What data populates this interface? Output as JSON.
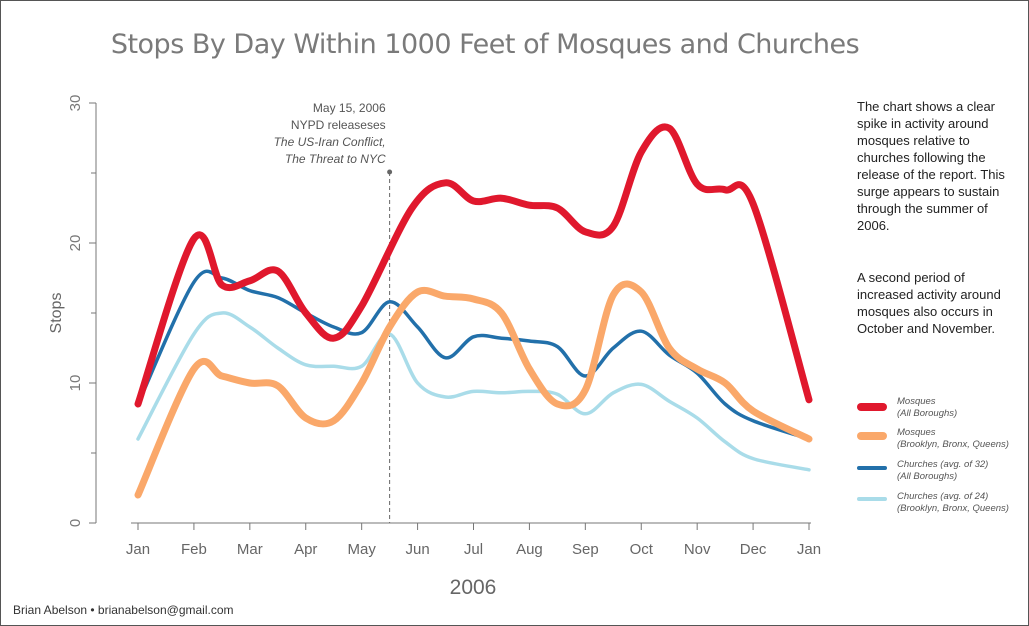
{
  "page": {
    "credit": "Brian Abelson • brianabelson@gmail.com",
    "description": [
      "The chart shows a clear spike in activity around mosques relative to churches following the release of the report. This surge appears to sustain through the summer of 2006.",
      "A second period of increased activity around mosques also occurs in October and November."
    ]
  },
  "chart_data": {
    "type": "line",
    "title": "Stops By Day Within 1000 Feet of Mosques and Churches",
    "xlabel": "2006",
    "ylabel": "Stops",
    "ylim": [
      0,
      30
    ],
    "yticks": [
      0,
      10,
      20,
      30
    ],
    "grid": false,
    "legend_position": "right",
    "x_tick_labels": [
      "Jan",
      "Feb",
      "Mar",
      "Apr",
      "May",
      "Jun",
      "Jul",
      "Aug",
      "Sep",
      "Oct",
      "Nov",
      "Dec",
      "Jan"
    ],
    "annotation": {
      "x": 4.5,
      "line1": "May 15, 2006",
      "line2": "NYPD releaseses",
      "line3": "The US-Iran Conflict,",
      "line4": "The Threat to NYC"
    },
    "series": [
      {
        "name": "Mosques",
        "subtitle": "(All Boroughs)",
        "color": "#e0182d",
        "width": 7,
        "points": [
          [
            0,
            8.5
          ],
          [
            1,
            20.3
          ],
          [
            1.5,
            17
          ],
          [
            2,
            17.3
          ],
          [
            2.5,
            18
          ],
          [
            3,
            15
          ],
          [
            3.5,
            13.2
          ],
          [
            4,
            15.5
          ],
          [
            4.9,
            22.5
          ],
          [
            5.5,
            24.3
          ],
          [
            6,
            23
          ],
          [
            6.5,
            23.2
          ],
          [
            7,
            22.7
          ],
          [
            7.5,
            22.5
          ],
          [
            8,
            20.8
          ],
          [
            8.5,
            21.2
          ],
          [
            9,
            26.5
          ],
          [
            9.5,
            28.2
          ],
          [
            10,
            24.2
          ],
          [
            10.5,
            23.8
          ],
          [
            11,
            22.8
          ],
          [
            12,
            8.8
          ]
        ]
      },
      {
        "name": "Mosques",
        "subtitle": "(Brooklyn, Bronx, Queens)",
        "color": "#faa86a",
        "width": 7,
        "points": [
          [
            0,
            2
          ],
          [
            1,
            11
          ],
          [
            1.5,
            10.5
          ],
          [
            2,
            10
          ],
          [
            2.5,
            9.8
          ],
          [
            3,
            7.5
          ],
          [
            3.5,
            7.3
          ],
          [
            4,
            10
          ],
          [
            4.5,
            14
          ],
          [
            5,
            16.5
          ],
          [
            5.5,
            16.2
          ],
          [
            6,
            16
          ],
          [
            6.5,
            15
          ],
          [
            7,
            11
          ],
          [
            7.5,
            8.5
          ],
          [
            8,
            9.5
          ],
          [
            8.5,
            16.3
          ],
          [
            9,
            16.5
          ],
          [
            9.5,
            12.5
          ],
          [
            10,
            11
          ],
          [
            10.5,
            10
          ],
          [
            11,
            8
          ],
          [
            12,
            6
          ]
        ]
      },
      {
        "name": "Churches (avg. of 32)",
        "subtitle": "(All Boroughs)",
        "color": "#2270aa",
        "width": 3.5,
        "points": [
          [
            0,
            8.5
          ],
          [
            1,
            17.2
          ],
          [
            1.5,
            17.5
          ],
          [
            2,
            16.6
          ],
          [
            2.5,
            16.1
          ],
          [
            3,
            15
          ],
          [
            3.5,
            14
          ],
          [
            4,
            13.6
          ],
          [
            4.5,
            15.8
          ],
          [
            5,
            14
          ],
          [
            5.5,
            11.8
          ],
          [
            6,
            13.3
          ],
          [
            6.5,
            13.2
          ],
          [
            7,
            13
          ],
          [
            7.5,
            12.6
          ],
          [
            8,
            10.5
          ],
          [
            8.5,
            12.5
          ],
          [
            9,
            13.7
          ],
          [
            9.5,
            12
          ],
          [
            10,
            10.7
          ],
          [
            10.5,
            8.5
          ],
          [
            11,
            7.3
          ],
          [
            12,
            6
          ]
        ]
      },
      {
        "name": "Churches (avg. of 24)",
        "subtitle": "(Brooklyn, Bronx, Queens)",
        "color": "#a9dce9",
        "width": 3.5,
        "points": [
          [
            0,
            6
          ],
          [
            1,
            13.5
          ],
          [
            1.5,
            15
          ],
          [
            2,
            14
          ],
          [
            2.5,
            12.5
          ],
          [
            3,
            11.3
          ],
          [
            3.5,
            11.2
          ],
          [
            4,
            11.2
          ],
          [
            4.5,
            13.5
          ],
          [
            5,
            10
          ],
          [
            5.5,
            9
          ],
          [
            6,
            9.4
          ],
          [
            6.5,
            9.3
          ],
          [
            7,
            9.4
          ],
          [
            7.5,
            9.2
          ],
          [
            8,
            7.8
          ],
          [
            8.5,
            9.3
          ],
          [
            9,
            9.9
          ],
          [
            9.5,
            8.7
          ],
          [
            10,
            7.5
          ],
          [
            10.5,
            5.8
          ],
          [
            11,
            4.6
          ],
          [
            12,
            3.8
          ]
        ]
      }
    ]
  }
}
